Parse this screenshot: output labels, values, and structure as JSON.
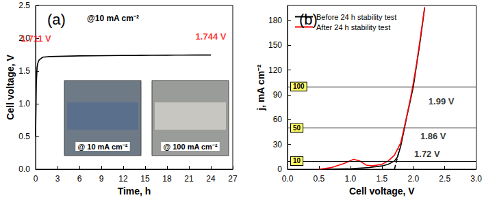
{
  "chart_data": [
    {
      "type": "line",
      "title": "(a)",
      "subtitle": "@10 mA cm⁻²",
      "x_label": "Time, h",
      "y_label": "Cell voltage, V",
      "xlim": [
        0,
        27
      ],
      "xticks": [
        0,
        3,
        6,
        9,
        12,
        15,
        18,
        21,
        24,
        27
      ],
      "ylim": [
        0,
        2.5
      ],
      "yticks": [
        {
          "value": 0,
          "label": "0.0"
        },
        0.5,
        {
          "value": 1,
          "label": "1.0"
        },
        1.5,
        {
          "value": 2,
          "label": "2.0"
        },
        2.5
      ],
      "insets": [
        "@ 10 mA cm⁻²",
        "@ 100 mA cm⁻²"
      ],
      "annotations": [
        {
          "text": "1.711 V",
          "x": 1,
          "y": 1.711,
          "color": "#ff0000"
        },
        {
          "text": "1.744 V",
          "x": 24,
          "y": 1.744,
          "color": "#ff0000"
        }
      ],
      "series": [
        {
          "color": "#000000",
          "x": [
            0,
            0.1,
            0.2,
            0.3,
            0.5,
            1,
            2,
            4,
            6,
            8,
            10,
            12,
            14,
            16,
            18,
            20,
            22,
            24
          ],
          "values": [
            0.5,
            1.3,
            1.55,
            1.62,
            1.67,
            1.711,
            1.72,
            1.725,
            1.73,
            1.732,
            1.735,
            1.737,
            1.738,
            1.74,
            1.741,
            1.742,
            1.743,
            1.744
          ]
        }
      ]
    },
    {
      "type": "line",
      "title": "(b)",
      "x_label": "Cell voltage, V",
      "y_label": "j, mA cm⁻²",
      "xlim": [
        0,
        3
      ],
      "xticks": [
        {
          "value": 0,
          "label": "0.0"
        },
        0.5,
        {
          "value": 1,
          "label": "1.0"
        },
        1.5,
        {
          "value": 2,
          "label": "2.0"
        },
        2.5,
        {
          "value": 3,
          "label": "3.0"
        }
      ],
      "ylim": [
        0,
        198
      ],
      "yticks": [
        0,
        30,
        60,
        90,
        120,
        150,
        180
      ],
      "legend": "upper left",
      "hlines": [
        10,
        50,
        100
      ],
      "annotations": [
        {
          "text": "1.72 V",
          "x": 1.72,
          "y": 10,
          "color": "#000000"
        },
        {
          "text": "1.86 V",
          "x": 1.86,
          "y": 50,
          "color": "#000000"
        },
        {
          "text": "1.99 V",
          "x": 1.99,
          "y": 100,
          "color": "#000000"
        }
      ],
      "series": [
        {
          "name": "Before 24 h stability test",
          "color": "#000000",
          "x": [
            0.5,
            1.0,
            1.3,
            1.5,
            1.6,
            1.7,
            1.75,
            1.8,
            1.86,
            1.9,
            1.95,
            2.0,
            2.05,
            2.1,
            2.15,
            2.18
          ],
          "values": [
            0,
            0.5,
            2,
            4,
            6,
            10,
            15,
            28,
            50,
            65,
            82,
            100,
            125,
            150,
            178,
            195
          ]
        },
        {
          "name": "After 24 h stability test",
          "color": "#ff0000",
          "x": [
            0.5,
            0.7,
            0.9,
            1.05,
            1.15,
            1.25,
            1.35,
            1.5,
            1.6,
            1.7,
            1.8,
            1.86,
            1.9,
            1.95,
            1.99,
            2.05,
            2.1,
            2.15,
            2.18
          ],
          "values": [
            0,
            2,
            7,
            12,
            10,
            5,
            4,
            6,
            10,
            17,
            32,
            52,
            66,
            84,
            100,
            127,
            153,
            180,
            196
          ]
        },
        {
          "color": "#000000",
          "line_style": "dashed",
          "x": [
            1.7,
            1.74,
            1.78
          ],
          "values": [
            0,
            12,
            25
          ]
        }
      ]
    }
  ]
}
